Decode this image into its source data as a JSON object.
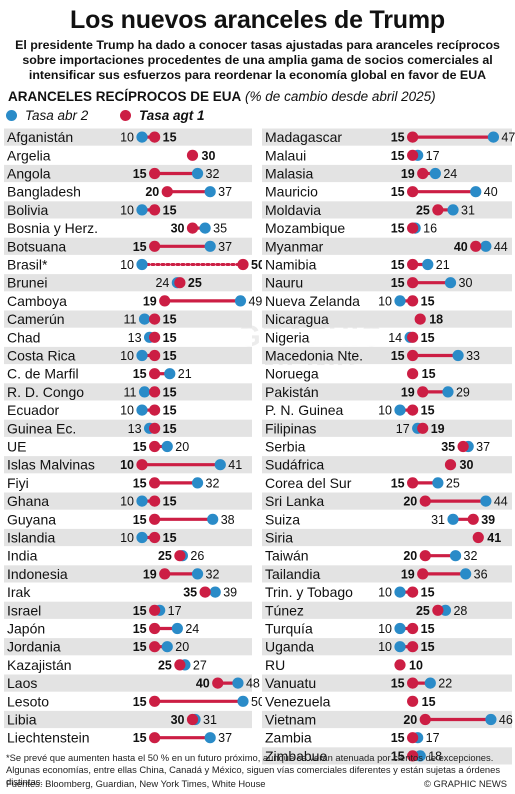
{
  "title": "Los nuevos aranceles de Trump",
  "intro": "El presidente Trump ha dado a conocer tasas ajustadas para aranceles recíprocos sobre importaciones procedentes de una amplia gama de socios comerciales al intensificar sus esfuerzos para reordenar la economía global en favor de EUA",
  "subtitle_main": "ARANCELES RECÍPROCOS DE EUA",
  "subtitle_sub": "(% de cambio desde abril 2025)",
  "legend_old": "Tasa abr 2",
  "legend_new": "Tasa agt 1",
  "colors": {
    "old": "#2a8bc8",
    "new": "#cc1e44",
    "row_shade": "#e3e3e3",
    "row_white": "#ffffff"
  },
  "chart_data": {
    "type": "dumbbell",
    "x_range": [
      10,
      50
    ],
    "series": [
      {
        "name": "Tasa abr 2",
        "key": "old"
      },
      {
        "name": "Tasa agt 1",
        "key": "new"
      }
    ],
    "columns": [
      [
        {
          "country": "Afganistán",
          "old": 10,
          "new": 15
        },
        {
          "country": "Argelia",
          "old": 30,
          "new": 30
        },
        {
          "country": "Angola",
          "old": 32,
          "new": 15
        },
        {
          "country": "Bangladesh",
          "old": 37,
          "new": 20
        },
        {
          "country": "Bolivia",
          "old": 10,
          "new": 15
        },
        {
          "country": "Bosnia y Herz.",
          "old": 35,
          "new": 30
        },
        {
          "country": "Botsuana",
          "old": 37,
          "new": 15
        },
        {
          "country": "Brasil*",
          "old": 10,
          "new": 50,
          "dotted": true
        },
        {
          "country": "Brunei",
          "old": 24,
          "new": 25
        },
        {
          "country": "Camboya",
          "old": 49,
          "new": 19
        },
        {
          "country": "Camerún",
          "old": 11,
          "new": 15
        },
        {
          "country": "Chad",
          "old": 13,
          "new": 15
        },
        {
          "country": "Costa Rica",
          "old": 10,
          "new": 15
        },
        {
          "country": "C. de Marfil",
          "old": 21,
          "new": 15
        },
        {
          "country": "R. D. Congo",
          "old": 11,
          "new": 15
        },
        {
          "country": "Ecuador",
          "old": 10,
          "new": 15
        },
        {
          "country": "Guinea Ec.",
          "old": 13,
          "new": 15
        },
        {
          "country": "UE",
          "old": 20,
          "new": 15
        },
        {
          "country": "Islas Malvinas",
          "old": 41,
          "new": 10
        },
        {
          "country": "Fiyi",
          "old": 32,
          "new": 15
        },
        {
          "country": "Ghana",
          "old": 10,
          "new": 15
        },
        {
          "country": "Guyana",
          "old": 38,
          "new": 15
        },
        {
          "country": "Islandia",
          "old": 10,
          "new": 15
        },
        {
          "country": "India",
          "old": 26,
          "new": 25
        },
        {
          "country": "Indonesia",
          "old": 32,
          "new": 19
        },
        {
          "country": "Irak",
          "old": 39,
          "new": 35
        },
        {
          "country": "Israel",
          "old": 17,
          "new": 15
        },
        {
          "country": "Japón",
          "old": 24,
          "new": 15
        },
        {
          "country": "Jordania",
          "old": 20,
          "new": 15
        },
        {
          "country": "Kazajistán",
          "old": 27,
          "new": 25
        },
        {
          "country": "Laos",
          "old": 48,
          "new": 40
        },
        {
          "country": "Lesoto",
          "old": 50,
          "new": 15
        },
        {
          "country": "Libia",
          "old": 31,
          "new": 30
        },
        {
          "country": "Liechtenstein",
          "old": 37,
          "new": 15
        }
      ],
      [
        {
          "country": "Madagascar",
          "old": 47,
          "new": 15
        },
        {
          "country": "Malaui",
          "old": 17,
          "new": 15
        },
        {
          "country": "Malasia",
          "old": 24,
          "new": 19
        },
        {
          "country": "Mauricio",
          "old": 40,
          "new": 15
        },
        {
          "country": "Moldavia",
          "old": 31,
          "new": 25
        },
        {
          "country": "Mozambique",
          "old": 16,
          "new": 15
        },
        {
          "country": "Myanmar",
          "old": 44,
          "new": 40
        },
        {
          "country": "Namibia",
          "old": 21,
          "new": 15
        },
        {
          "country": "Nauru",
          "old": 30,
          "new": 15
        },
        {
          "country": "Nueva Zelanda",
          "old": 10,
          "new": 15
        },
        {
          "country": "Nicaragua",
          "old": 18,
          "new": 18
        },
        {
          "country": "Nigeria",
          "old": 14,
          "new": 15
        },
        {
          "country": "Macedonia Nte.",
          "old": 33,
          "new": 15
        },
        {
          "country": "Noruega",
          "old": 15,
          "new": 15
        },
        {
          "country": "Pakistán",
          "old": 29,
          "new": 19
        },
        {
          "country": "P. N. Guinea",
          "old": 10,
          "new": 15
        },
        {
          "country": "Filipinas",
          "old": 17,
          "new": 19
        },
        {
          "country": "Serbia",
          "old": 37,
          "new": 35
        },
        {
          "country": "Sudáfrica",
          "old": 30,
          "new": 30
        },
        {
          "country": "Corea del Sur",
          "old": 25,
          "new": 15
        },
        {
          "country": "Sri Lanka",
          "old": 44,
          "new": 20
        },
        {
          "country": "Suiza",
          "old": 31,
          "new": 39
        },
        {
          "country": "Siria",
          "old": 41,
          "new": 41
        },
        {
          "country": "Taiwán",
          "old": 32,
          "new": 20
        },
        {
          "country": "Tailandia",
          "old": 36,
          "new": 19
        },
        {
          "country": "Trin. y Tobago",
          "old": 10,
          "new": 15
        },
        {
          "country": "Túnez",
          "old": 28,
          "new": 25
        },
        {
          "country": "Turquía",
          "old": 10,
          "new": 15
        },
        {
          "country": "Uganda",
          "old": 10,
          "new": 15
        },
        {
          "country": "RU",
          "old": 10,
          "new": 10
        },
        {
          "country": "Vanuatu",
          "old": 22,
          "new": 15
        },
        {
          "country": "Venezuela",
          "old": 15,
          "new": 15
        },
        {
          "country": "Vietnam",
          "old": 46,
          "new": 20
        },
        {
          "country": "Zambia",
          "old": 17,
          "new": 15
        },
        {
          "country": "Zimbabue",
          "old": 18,
          "new": 15
        }
      ]
    ]
  },
  "footnote": "*Se prevé que aumenten hasta el 50 % en un futuro próximo, aunque se verán atenuada por cientos de excepciones. Algunas economías, entre ellas China, Canadá y México, siguen vías comerciales diferentes y están sujetas a órdenes distintas.",
  "sources": "Fuentes: Bloomberg, Guardian, New York Times, White House",
  "credit": "© GRAPHIC NEWS",
  "watermark": "GRAPHIC NEWS"
}
